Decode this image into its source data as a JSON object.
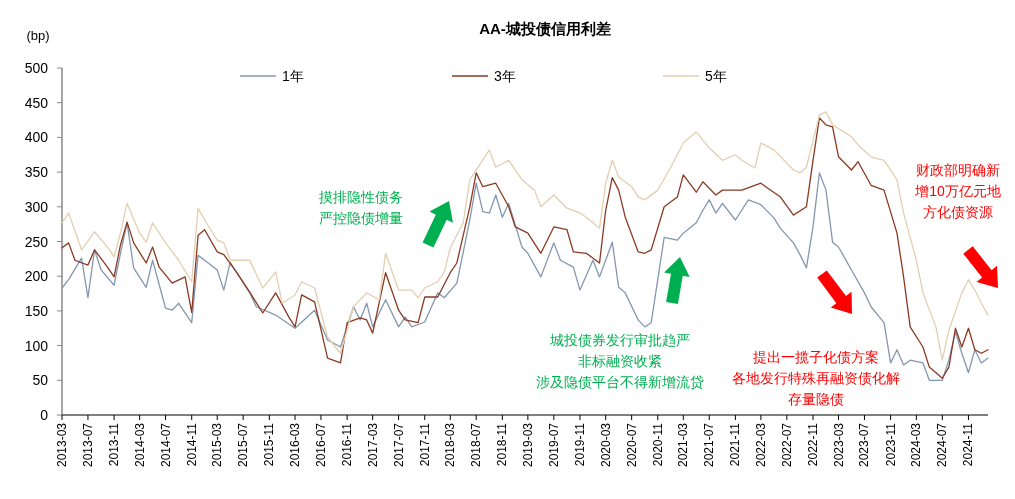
{
  "chart_data": {
    "type": "line",
    "title": "AA-城投债信用利差",
    "ylabel": "(bp)",
    "legend": "top",
    "grid": false,
    "marker": "none",
    "line_style": "solid",
    "xlim": [
      "2013-03",
      "2025-02"
    ],
    "xticks": [
      "2013-03",
      "2013-07",
      "2013-11",
      "2014-03",
      "2014-07",
      "2014-11",
      "2015-03",
      "2015-07",
      "2015-11",
      "2016-03",
      "2016-07",
      "2016-11",
      "2017-03",
      "2017-07",
      "2017-11",
      "2018-03",
      "2018-07",
      "2018-11",
      "2019-03",
      "2019-07",
      "2019-11",
      "2020-03",
      "2020-07",
      "2020-11",
      "2021-03",
      "2021-07",
      "2021-11",
      "2022-03",
      "2022-07",
      "2022-11",
      "2023-03",
      "2023-07",
      "2023-11",
      "2024-03",
      "2024-07",
      "2024-11"
    ],
    "ylim": [
      0,
      500
    ],
    "yticks": [
      0,
      50,
      100,
      150,
      200,
      250,
      300,
      350,
      400,
      450,
      500
    ],
    "series": [
      {
        "name": "1年",
        "color": "#8497b0",
        "x": [
          "2013-03",
          "2013-04",
          "2013-06",
          "2013-07",
          "2013-08",
          "2013-09",
          "2013-11",
          "2013-12",
          "2014-01",
          "2014-02",
          "2014-04",
          "2014-05",
          "2014-07",
          "2014-08",
          "2014-09",
          "2014-11",
          "2014-12",
          "2015-01",
          "2015-03",
          "2015-04",
          "2015-05",
          "2015-08",
          "2015-09",
          "2015-12",
          "2016-03",
          "2016-06",
          "2016-08",
          "2016-10",
          "2016-12",
          "2017-01",
          "2017-02",
          "2017-03",
          "2017-05",
          "2017-07",
          "2017-08",
          "2017-09",
          "2017-11",
          "2018-01",
          "2018-02",
          "2018-04",
          "2018-06",
          "2018-07",
          "2018-08",
          "2018-09",
          "2018-10",
          "2018-11",
          "2018-12",
          "2019-02",
          "2019-03",
          "2019-05",
          "2019-07",
          "2019-08",
          "2019-10",
          "2019-11",
          "2020-01",
          "2020-02",
          "2020-04",
          "2020-05",
          "2020-06",
          "2020-08",
          "2020-09",
          "2020-10",
          "2020-12",
          "2021-02",
          "2021-03",
          "2021-05",
          "2021-06",
          "2021-07",
          "2021-08",
          "2021-09",
          "2021-11",
          "2022-01",
          "2022-03",
          "2022-05",
          "2022-06",
          "2022-08",
          "2022-09",
          "2022-10",
          "2022-11",
          "2022-12",
          "2023-01",
          "2023-02",
          "2023-03",
          "2023-05",
          "2023-07",
          "2023-08",
          "2023-10",
          "2023-11",
          "2023-12",
          "2024-01",
          "2024-02",
          "2024-04",
          "2024-05",
          "2024-07",
          "2024-08",
          "2024-09",
          "2024-10",
          "2024-11",
          "2024-12",
          "2025-01",
          "2025-02"
        ],
        "values": [
          183,
          195,
          226,
          169,
          238,
          209,
          187,
          233,
          277,
          212,
          184,
          223,
          154,
          151,
          161,
          133,
          230,
          223,
          209,
          180,
          220,
          176,
          156,
          144,
          125,
          151,
          108,
          98,
          156,
          137,
          161,
          127,
          166,
          127,
          141,
          127,
          134,
          176,
          169,
          190,
          281,
          334,
          293,
          291,
          317,
          285,
          305,
          242,
          233,
          199,
          248,
          223,
          213,
          180,
          223,
          199,
          249,
          184,
          176,
          137,
          127,
          133,
          256,
          252,
          262,
          277,
          295,
          310,
          291,
          305,
          281,
          310,
          303,
          284,
          269,
          248,
          231,
          212,
          271,
          349,
          324,
          249,
          242,
          209,
          176,
          156,
          133,
          75,
          94,
          72,
          79,
          75,
          50,
          50,
          79,
          120,
          89,
          61,
          94,
          75,
          82
        ]
      },
      {
        "name": "3年",
        "color": "#8b3a22",
        "x": [
          "2013-03",
          "2013-04",
          "2013-05",
          "2013-07",
          "2013-08",
          "2013-10",
          "2013-11",
          "2013-12",
          "2014-01",
          "2014-02",
          "2014-04",
          "2014-05",
          "2014-06",
          "2014-08",
          "2014-10",
          "2014-11",
          "2014-12",
          "2015-01",
          "2015-03",
          "2015-04",
          "2015-06",
          "2015-08",
          "2015-10",
          "2015-12",
          "2016-02",
          "2016-03",
          "2016-04",
          "2016-06",
          "2016-08",
          "2016-10",
          "2016-11",
          "2017-01",
          "2017-02",
          "2017-03",
          "2017-05",
          "2017-07",
          "2017-08",
          "2017-10",
          "2017-11",
          "2018-01",
          "2018-03",
          "2018-04",
          "2018-06",
          "2018-07",
          "2018-08",
          "2018-10",
          "2018-12",
          "2019-01",
          "2019-03",
          "2019-05",
          "2019-07",
          "2019-09",
          "2019-10",
          "2019-12",
          "2020-02",
          "2020-03",
          "2020-04",
          "2020-05",
          "2020-06",
          "2020-08",
          "2020-09",
          "2020-10",
          "2020-12",
          "2021-02",
          "2021-03",
          "2021-05",
          "2021-06",
          "2021-08",
          "2021-09",
          "2021-12",
          "2022-03",
          "2022-04",
          "2022-06",
          "2022-08",
          "2022-10",
          "2022-11",
          "2022-12",
          "2023-01",
          "2023-02",
          "2023-03",
          "2023-05",
          "2023-06",
          "2023-08",
          "2023-10",
          "2023-12",
          "2024-01",
          "2024-02",
          "2024-04",
          "2024-05",
          "2024-07",
          "2024-08",
          "2024-09",
          "2024-10",
          "2024-11",
          "2024-12",
          "2025-01",
          "2025-02"
        ],
        "values": [
          241,
          248,
          223,
          216,
          238,
          213,
          199,
          245,
          278,
          248,
          219,
          242,
          213,
          190,
          199,
          148,
          259,
          267,
          235,
          231,
          205,
          177,
          147,
          176,
          141,
          127,
          173,
          163,
          82,
          75,
          133,
          140,
          137,
          118,
          205,
          151,
          137,
          133,
          170,
          170,
          205,
          219,
          300,
          349,
          329,
          334,
          300,
          271,
          262,
          233,
          271,
          267,
          235,
          233,
          219,
          295,
          342,
          324,
          285,
          235,
          233,
          238,
          300,
          314,
          346,
          321,
          336,
          317,
          324,
          324,
          334,
          327,
          314,
          288,
          300,
          367,
          428,
          418,
          415,
          372,
          353,
          365,
          331,
          324,
          262,
          199,
          127,
          98,
          69,
          53,
          69,
          125,
          98,
          125,
          94,
          89,
          94
        ]
      },
      {
        "name": "5年",
        "color": "#e3cfb0",
        "x": [
          "2013-03",
          "2013-04",
          "2013-06",
          "2013-08",
          "2013-10",
          "2013-11",
          "2013-12",
          "2014-01",
          "2014-03",
          "2014-04",
          "2014-05",
          "2014-07",
          "2014-09",
          "2014-11",
          "2014-12",
          "2015-01",
          "2015-03",
          "2015-04",
          "2015-05",
          "2015-08",
          "2015-10",
          "2015-12",
          "2016-01",
          "2016-03",
          "2016-04",
          "2016-06",
          "2016-08",
          "2016-10",
          "2016-12",
          "2017-02",
          "2017-04",
          "2017-05",
          "2017-07",
          "2017-09",
          "2017-10",
          "2017-11",
          "2018-01",
          "2018-02",
          "2018-03",
          "2018-05",
          "2018-06",
          "2018-07",
          "2018-09",
          "2018-10",
          "2018-12",
          "2019-02",
          "2019-04",
          "2019-05",
          "2019-07",
          "2019-09",
          "2019-11",
          "2019-12",
          "2020-02",
          "2020-03",
          "2020-04",
          "2020-05",
          "2020-07",
          "2020-08",
          "2020-09",
          "2020-11",
          "2021-01",
          "2021-03",
          "2021-05",
          "2021-06",
          "2021-07",
          "2021-09",
          "2021-11",
          "2021-12",
          "2022-02",
          "2022-03",
          "2022-05",
          "2022-08",
          "2022-09",
          "2022-10",
          "2022-12",
          "2023-01",
          "2023-02",
          "2023-05",
          "2023-06",
          "2023-08",
          "2023-10",
          "2023-12",
          "2024-01",
          "2024-03",
          "2024-04",
          "2024-06",
          "2024-07",
          "2024-08",
          "2024-10",
          "2024-11",
          "2024-12",
          "2025-01",
          "2025-02"
        ],
        "values": [
          277,
          291,
          238,
          264,
          242,
          228,
          262,
          305,
          262,
          249,
          277,
          248,
          223,
          192,
          298,
          281,
          252,
          248,
          223,
          223,
          183,
          206,
          161,
          173,
          192,
          183,
          112,
          89,
          156,
          176,
          166,
          233,
          180,
          180,
          169,
          183,
          192,
          206,
          241,
          277,
          339,
          353,
          382,
          357,
          367,
          339,
          324,
          300,
          317,
          298,
          291,
          285,
          269,
          334,
          367,
          343,
          329,
          314,
          310,
          324,
          357,
          392,
          408,
          396,
          385,
          367,
          375,
          367,
          356,
          392,
          382,
          353,
          349,
          357,
          432,
          437,
          418,
          401,
          389,
          372,
          367,
          339,
          291,
          223,
          176,
          127,
          79,
          122,
          176,
          195,
          180,
          161,
          144
        ]
      }
    ],
    "annotations": [
      "摸排隐性债务严控隐债增量",
      "城投债券发行审批趋严非标融资收紧涉及隐债平台不得新增流贷",
      "提出一揽子化债方案各地发行特殊再融资债化解存量隐债",
      "财政部明确新增10万亿元地方化债资源"
    ]
  }
}
